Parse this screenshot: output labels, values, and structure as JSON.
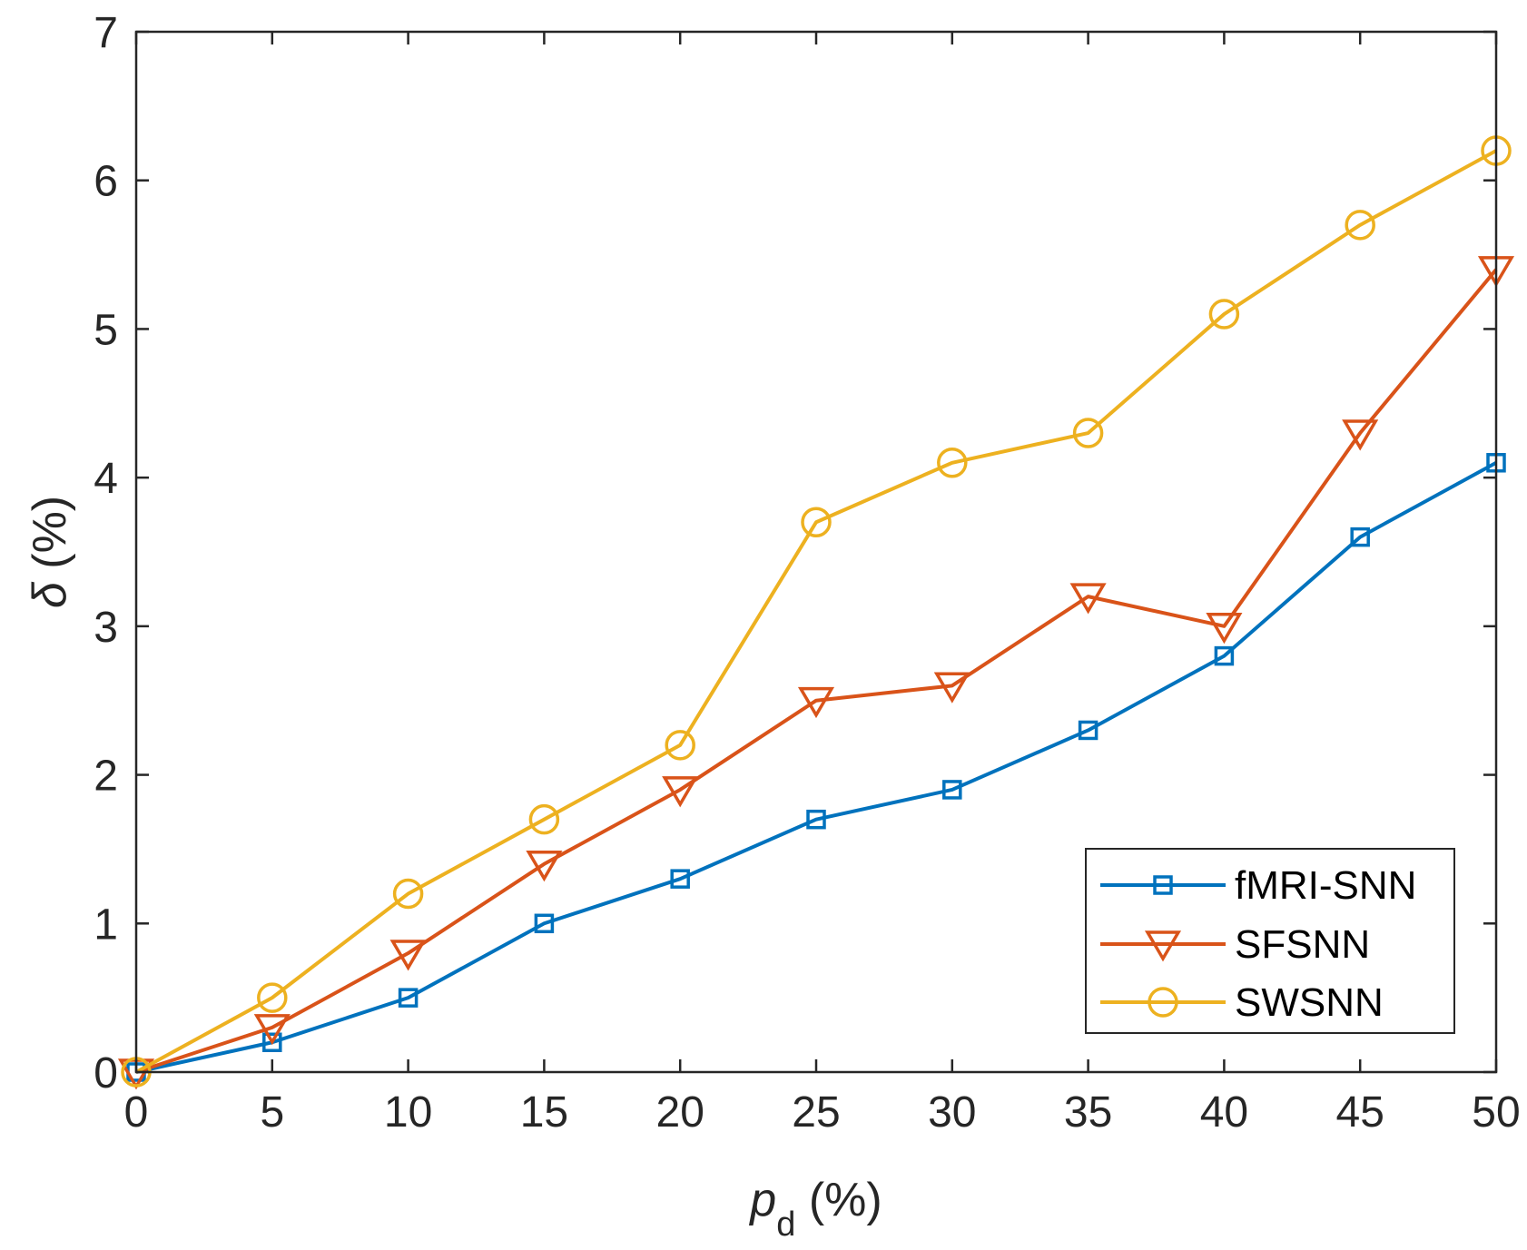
{
  "chart_data": {
    "type": "line",
    "title": "",
    "x": [
      0,
      5,
      10,
      15,
      20,
      25,
      30,
      35,
      40,
      45,
      50
    ],
    "xlim": [
      0,
      50
    ],
    "ylim": [
      0,
      7
    ],
    "xticks": [
      "0",
      "5",
      "10",
      "15",
      "20",
      "25",
      "30",
      "35",
      "40",
      "45",
      "50"
    ],
    "yticks": [
      "0",
      "1",
      "2",
      "3",
      "4",
      "5",
      "6",
      "7"
    ],
    "xlabel": {
      "symbol": "p",
      "subscript": "d",
      "unit": "(%)"
    },
    "ylabel": {
      "symbol": "δ",
      "unit": "(%)"
    },
    "grid": false,
    "legend_position": "bottom-right",
    "series": [
      {
        "name": "fMRI-SNN",
        "color": "#0072BD",
        "marker": "square",
        "values": [
          0,
          0.2,
          0.5,
          1.0,
          1.3,
          1.7,
          1.9,
          2.3,
          2.8,
          3.6,
          4.1
        ]
      },
      {
        "name": "SFSNN",
        "color": "#D95319",
        "marker": "triangle-down",
        "values": [
          0,
          0.3,
          0.8,
          1.4,
          1.9,
          2.5,
          2.6,
          3.2,
          3.0,
          4.3,
          5.4
        ]
      },
      {
        "name": "SWSNN",
        "color": "#EDB120",
        "marker": "circle",
        "values": [
          0,
          0.5,
          1.2,
          1.7,
          2.2,
          3.7,
          4.1,
          4.3,
          5.1,
          5.7,
          6.2
        ]
      }
    ]
  }
}
